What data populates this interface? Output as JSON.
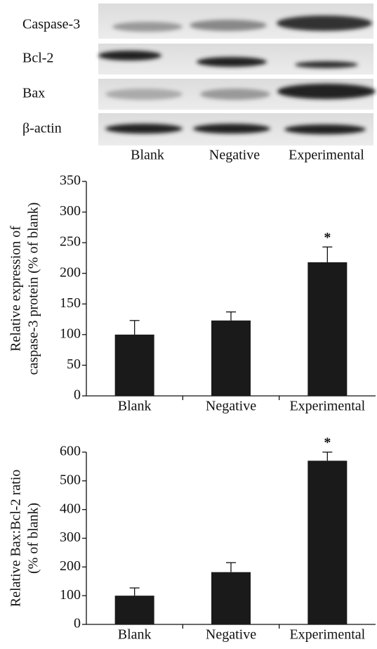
{
  "blot": {
    "rows": [
      "Caspase-3",
      "Bcl-2",
      "Bax",
      "β-actin"
    ],
    "lanes": [
      "Blank",
      "Negative",
      "Experimental"
    ]
  },
  "chart_data": [
    {
      "type": "bar",
      "y_label": [
        "Relative expression of",
        "caspase-3 protein  (% of blank)"
      ],
      "categories": [
        "Blank",
        "Negative",
        "Experimental"
      ],
      "values": [
        100,
        123,
        218
      ],
      "errors": [
        23,
        14,
        25
      ],
      "color": "#1a1a1a",
      "ylim": [
        0,
        350
      ],
      "yticks": [
        0,
        50,
        100,
        150,
        200,
        250,
        300,
        350
      ],
      "annotation": {
        "text": "*",
        "category": "Experimental"
      }
    },
    {
      "type": "bar",
      "y_label": [
        "Relative Bax:Bcl-2 ratio",
        "(% of blank)"
      ],
      "categories": [
        "Blank",
        "Negative",
        "Experimental"
      ],
      "values": [
        100,
        182,
        570
      ],
      "errors": [
        27,
        33,
        30
      ],
      "color": "#1a1a1a",
      "ylim": [
        0,
        600
      ],
      "yticks": [
        0,
        100,
        200,
        300,
        400,
        500,
        600
      ],
      "annotation": {
        "text": "*",
        "category": "Experimental"
      }
    }
  ]
}
